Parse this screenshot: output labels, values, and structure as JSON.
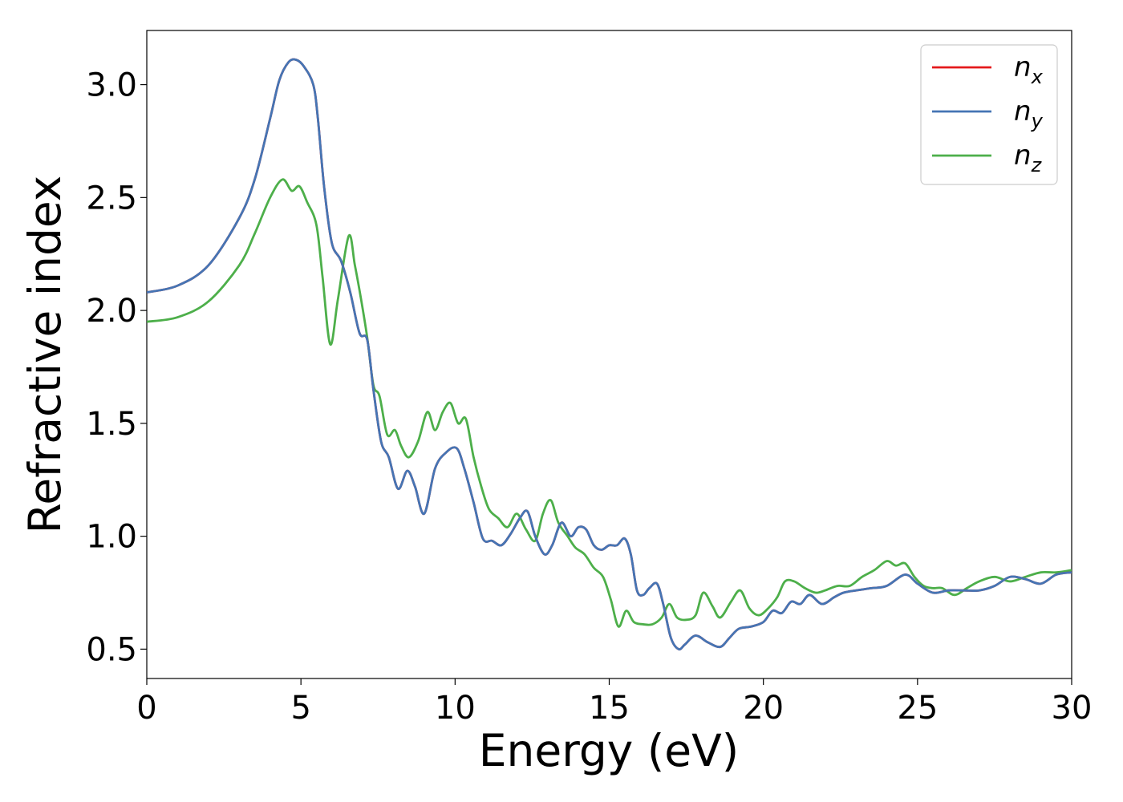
{
  "chart_data": {
    "type": "line",
    "title": "",
    "xlabel": "Energy (eV)",
    "ylabel": "Refractive index",
    "xlim": [
      0,
      30
    ],
    "ylim": [
      0.37,
      3.24
    ],
    "x_ticks": [
      0,
      5,
      10,
      15,
      20,
      25,
      30
    ],
    "x_tick_labels": [
      "0",
      "5",
      "10",
      "15",
      "20",
      "25",
      "30"
    ],
    "y_ticks": [
      0.5,
      1.0,
      1.5,
      2.0,
      2.5,
      3.0
    ],
    "y_tick_labels": [
      "0.5",
      "1.0",
      "1.5",
      "2.0",
      "2.5",
      "3.0"
    ],
    "grid": false,
    "legend_position": "top-right",
    "series": [
      {
        "name": "n_x",
        "label_base": "n",
        "label_sub": "x",
        "color": "#e41a1c",
        "x": [
          0,
          1,
          2,
          3,
          3.5,
          4,
          4.3,
          4.6,
          4.85,
          5.1,
          5.4,
          5.55,
          5.75,
          6.0,
          6.3,
          6.6,
          6.9,
          7.15,
          7.35,
          7.6,
          7.85,
          8.15,
          8.45,
          8.7,
          9.0,
          9.35,
          9.7,
          10.05,
          10.3,
          10.6,
          10.9,
          11.2,
          11.5,
          11.8,
          12.1,
          12.35,
          12.6,
          12.9,
          13.15,
          13.45,
          13.75,
          14.0,
          14.25,
          14.5,
          14.75,
          15.0,
          15.25,
          15.5,
          15.7,
          15.9,
          16.1,
          16.3,
          16.55,
          16.75,
          17.0,
          17.25,
          17.45,
          17.8,
          18.2,
          18.6,
          18.9,
          19.2,
          19.6,
          20.0,
          20.3,
          20.6,
          20.9,
          21.2,
          21.5,
          21.9,
          22.3,
          22.6,
          23.0,
          23.5,
          24.0,
          24.6,
          25.0,
          25.5,
          26.0,
          26.5,
          27.0,
          27.5,
          28.0,
          28.5,
          29.0,
          29.5,
          30.0
        ],
        "y": [
          2.08,
          2.11,
          2.2,
          2.41,
          2.58,
          2.85,
          3.02,
          3.1,
          3.11,
          3.08,
          3.0,
          2.85,
          2.55,
          2.3,
          2.22,
          2.08,
          1.9,
          1.87,
          1.65,
          1.42,
          1.35,
          1.21,
          1.29,
          1.22,
          1.1,
          1.3,
          1.37,
          1.39,
          1.3,
          1.15,
          0.99,
          0.98,
          0.96,
          1.01,
          1.08,
          1.11,
          1.0,
          0.92,
          0.96,
          1.06,
          1.0,
          1.04,
          1.03,
          0.96,
          0.94,
          0.96,
          0.96,
          0.99,
          0.92,
          0.76,
          0.74,
          0.77,
          0.79,
          0.7,
          0.55,
          0.5,
          0.52,
          0.56,
          0.53,
          0.51,
          0.55,
          0.59,
          0.6,
          0.62,
          0.67,
          0.66,
          0.71,
          0.7,
          0.74,
          0.7,
          0.73,
          0.75,
          0.76,
          0.77,
          0.78,
          0.83,
          0.79,
          0.75,
          0.76,
          0.76,
          0.76,
          0.78,
          0.82,
          0.81,
          0.79,
          0.83,
          0.84
        ]
      },
      {
        "name": "n_y",
        "label_base": "n",
        "label_sub": "y",
        "color": "#4575b4",
        "x": [
          0,
          1,
          2,
          3,
          3.5,
          4,
          4.3,
          4.6,
          4.85,
          5.1,
          5.4,
          5.55,
          5.75,
          6.0,
          6.3,
          6.6,
          6.9,
          7.15,
          7.35,
          7.6,
          7.85,
          8.15,
          8.45,
          8.7,
          9.0,
          9.35,
          9.7,
          10.05,
          10.3,
          10.6,
          10.9,
          11.2,
          11.5,
          11.8,
          12.1,
          12.35,
          12.6,
          12.9,
          13.15,
          13.45,
          13.75,
          14.0,
          14.25,
          14.5,
          14.75,
          15.0,
          15.25,
          15.5,
          15.7,
          15.9,
          16.1,
          16.3,
          16.55,
          16.75,
          17.0,
          17.25,
          17.45,
          17.8,
          18.2,
          18.6,
          18.9,
          19.2,
          19.6,
          20.0,
          20.3,
          20.6,
          20.9,
          21.2,
          21.5,
          21.9,
          22.3,
          22.6,
          23.0,
          23.5,
          24.0,
          24.6,
          25.0,
          25.5,
          26.0,
          26.5,
          27.0,
          27.5,
          28.0,
          28.5,
          29.0,
          29.5,
          30.0
        ],
        "y": [
          2.08,
          2.11,
          2.2,
          2.41,
          2.58,
          2.85,
          3.02,
          3.1,
          3.11,
          3.08,
          3.0,
          2.85,
          2.55,
          2.3,
          2.22,
          2.08,
          1.9,
          1.87,
          1.65,
          1.42,
          1.35,
          1.21,
          1.29,
          1.22,
          1.1,
          1.3,
          1.37,
          1.39,
          1.3,
          1.15,
          0.99,
          0.98,
          0.96,
          1.01,
          1.08,
          1.11,
          1.0,
          0.92,
          0.96,
          1.06,
          1.0,
          1.04,
          1.03,
          0.96,
          0.94,
          0.96,
          0.96,
          0.99,
          0.92,
          0.76,
          0.74,
          0.77,
          0.79,
          0.7,
          0.55,
          0.5,
          0.52,
          0.56,
          0.53,
          0.51,
          0.55,
          0.59,
          0.6,
          0.62,
          0.67,
          0.66,
          0.71,
          0.7,
          0.74,
          0.7,
          0.73,
          0.75,
          0.76,
          0.77,
          0.78,
          0.83,
          0.79,
          0.75,
          0.76,
          0.76,
          0.76,
          0.78,
          0.82,
          0.81,
          0.79,
          0.83,
          0.84
        ]
      },
      {
        "name": "n_z",
        "label_base": "n",
        "label_sub": "z",
        "color": "#4daf4a",
        "x": [
          0,
          1,
          2,
          3,
          3.5,
          4,
          4.4,
          4.7,
          4.95,
          5.2,
          5.5,
          5.7,
          5.95,
          6.2,
          6.55,
          6.75,
          6.95,
          7.15,
          7.35,
          7.55,
          7.8,
          8.05,
          8.25,
          8.5,
          8.8,
          9.1,
          9.35,
          9.6,
          9.85,
          10.1,
          10.35,
          10.6,
          10.85,
          11.1,
          11.4,
          11.7,
          12.0,
          12.3,
          12.6,
          12.85,
          13.1,
          13.35,
          13.65,
          13.9,
          14.2,
          14.5,
          14.8,
          15.05,
          15.3,
          15.55,
          15.8,
          16.1,
          16.4,
          16.7,
          16.95,
          17.2,
          17.5,
          17.8,
          18.05,
          18.35,
          18.6,
          18.95,
          19.25,
          19.55,
          19.85,
          20.15,
          20.45,
          20.7,
          21.0,
          21.35,
          21.7,
          22.0,
          22.4,
          22.8,
          23.2,
          23.6,
          24.0,
          24.3,
          24.6,
          24.9,
          25.2,
          25.5,
          25.8,
          26.2,
          26.6,
          27.0,
          27.5,
          28.0,
          28.5,
          29.0,
          29.5,
          30.0
        ],
        "y": [
          1.95,
          1.97,
          2.04,
          2.2,
          2.34,
          2.5,
          2.58,
          2.53,
          2.55,
          2.48,
          2.38,
          2.15,
          1.85,
          2.05,
          2.33,
          2.2,
          2.05,
          1.88,
          1.67,
          1.62,
          1.45,
          1.47,
          1.4,
          1.35,
          1.42,
          1.55,
          1.47,
          1.55,
          1.59,
          1.5,
          1.52,
          1.35,
          1.22,
          1.12,
          1.08,
          1.04,
          1.1,
          1.03,
          0.98,
          1.1,
          1.16,
          1.06,
          1.0,
          0.95,
          0.92,
          0.86,
          0.82,
          0.72,
          0.6,
          0.67,
          0.62,
          0.61,
          0.61,
          0.64,
          0.7,
          0.64,
          0.63,
          0.65,
          0.75,
          0.69,
          0.64,
          0.71,
          0.76,
          0.68,
          0.65,
          0.68,
          0.73,
          0.8,
          0.8,
          0.77,
          0.75,
          0.76,
          0.78,
          0.78,
          0.82,
          0.85,
          0.89,
          0.87,
          0.88,
          0.82,
          0.78,
          0.77,
          0.77,
          0.74,
          0.77,
          0.8,
          0.82,
          0.8,
          0.82,
          0.84,
          0.84,
          0.85
        ]
      }
    ]
  }
}
